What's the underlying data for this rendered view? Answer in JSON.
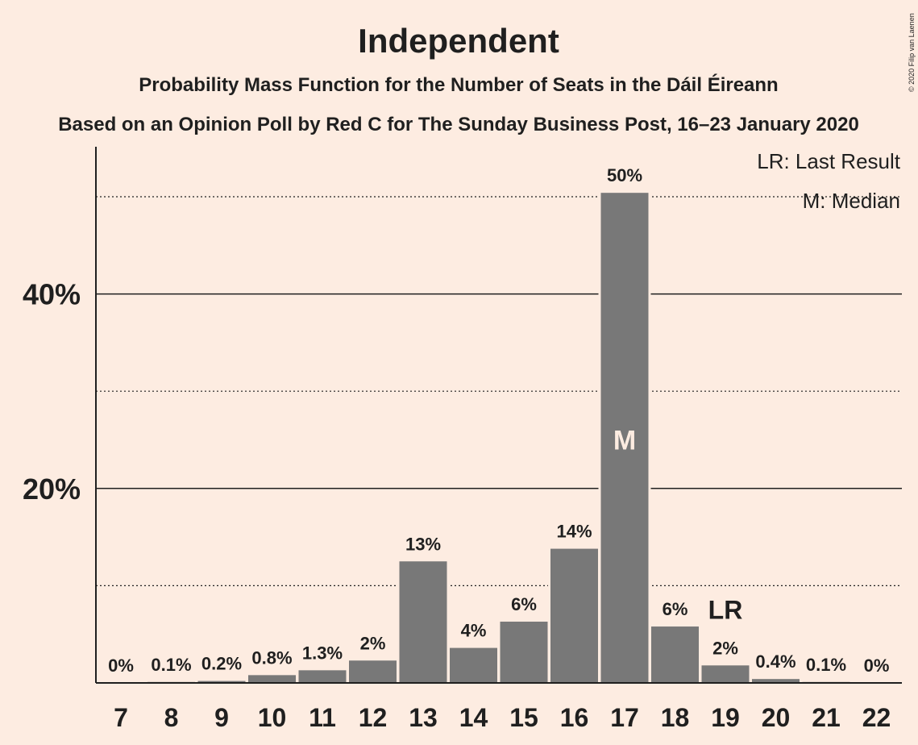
{
  "copyright": "© 2020 Filip van Laenen",
  "chart_data": {
    "type": "bar",
    "title": "Independent",
    "subtitle": "Probability Mass Function for the Number of Seats in the Dáil Éireann",
    "subtitle2": "Based on an Opinion Poll by Red C for The Sunday Business Post, 16–23 January 2020",
    "legend": {
      "lr": "LR: Last Result",
      "m": "M: Median",
      "placement": "top-right"
    },
    "categories": [
      "7",
      "8",
      "9",
      "10",
      "11",
      "12",
      "13",
      "14",
      "15",
      "16",
      "17",
      "18",
      "19",
      "20",
      "21",
      "22"
    ],
    "values": [
      0,
      0.1,
      0.2,
      0.8,
      1.3,
      2.3,
      12.5,
      3.6,
      6.3,
      13.8,
      50.4,
      5.8,
      1.8,
      0.4,
      0.1,
      0
    ],
    "data_labels": [
      "0%",
      "0.1%",
      "0.2%",
      "0.8%",
      "1.3%",
      "2%",
      "13%",
      "4%",
      "6%",
      "14%",
      "50%",
      "6%",
      "2%",
      "0.4%",
      "0.1%",
      "0%"
    ],
    "y_ticks": [
      {
        "value": 20,
        "label": "20%"
      },
      {
        "value": 40,
        "label": "40%"
      }
    ],
    "y_minor_gridlines": [
      10,
      30,
      50
    ],
    "ylim": [
      0,
      55
    ],
    "median": {
      "category": "17",
      "label": "M"
    },
    "last_result": {
      "category": "19",
      "label": "LR"
    },
    "colors": {
      "bar": "#787878",
      "background": "#fdece1",
      "text": "#1f1f1f",
      "median_text": "#fdece1"
    }
  }
}
